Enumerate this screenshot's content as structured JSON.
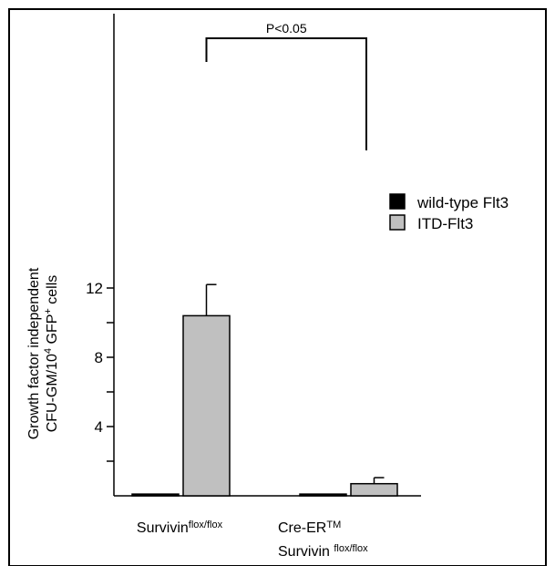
{
  "chart_data": {
    "type": "bar",
    "title": "",
    "ylabel": {
      "line1": "Growth factor independent",
      "line2_prefix": "CFU-GM/10",
      "line2_sup": "4",
      "line2_mid": " GFP",
      "line2_sup2": "+",
      "line2_suffix": " cells"
    },
    "ylim": [
      0,
      14
    ],
    "yticks": [
      4,
      8,
      12
    ],
    "minor_yticks": [
      2,
      6,
      10
    ],
    "grid": false,
    "legend_position": "right",
    "categories": [
      {
        "line1_base": "Survivin",
        "line1_sup": "flox/flox",
        "line2_base": "",
        "line2_sup": ""
      },
      {
        "line1_base": "Cre-ER",
        "line1_sup": "TM",
        "line2_base": "Survivin ",
        "line2_sup": "flox/flox"
      }
    ],
    "series": [
      {
        "name": "wild-type Flt3",
        "color": "#000000",
        "values": [
          0.1,
          0.1
        ],
        "errors": [
          0,
          0
        ]
      },
      {
        "name": "ITD-Flt3",
        "color": "#c0c0c0",
        "values": [
          10.4,
          0.7
        ],
        "errors": [
          1.8,
          0.35
        ]
      }
    ],
    "annotation": {
      "text": "P<0.05",
      "between": [
        0,
        1
      ]
    }
  }
}
